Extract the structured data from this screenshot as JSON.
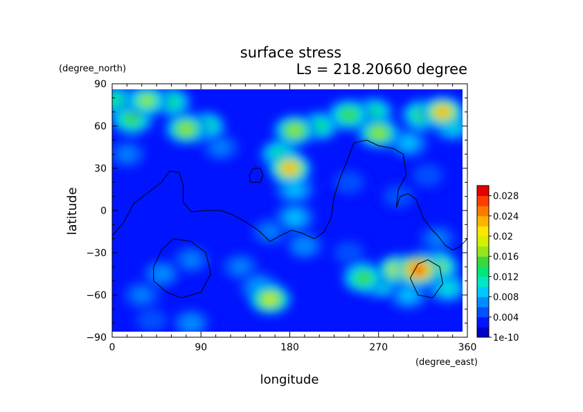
{
  "chart_data": {
    "type": "heatmap",
    "title": "surface stress",
    "subtitle": "Ls = 218.20660 degree",
    "xlabel": "longitude",
    "ylabel": "latitude",
    "x_units": "(degree_east)",
    "y_units": "(degree_north)",
    "xlim": [
      0,
      360
    ],
    "ylim": [
      -90,
      90
    ],
    "x_ticks": [
      "0",
      "90",
      "180",
      "270",
      "360"
    ],
    "y_ticks": [
      "90",
      "60",
      "30",
      "0",
      "−30",
      "−60",
      "−90"
    ],
    "grid": false,
    "colorbar": {
      "placement": "right",
      "min": 0,
      "max": 0.03,
      "tick_labels": [
        "1e-10",
        "0.004",
        "0.008",
        "0.012",
        "0.016",
        "0.02",
        "0.024",
        "0.028"
      ],
      "tick_values": [
        0,
        0.004,
        0.008,
        0.012,
        0.016,
        0.02,
        0.024,
        0.028
      ],
      "colors": [
        "#0000c8",
        "#0014ff",
        "#0050ff",
        "#008cff",
        "#00c8ff",
        "#00e6c8",
        "#00e678",
        "#3cd73c",
        "#96e61e",
        "#d2f000",
        "#ffe600",
        "#ffb400",
        "#ff7800",
        "#ff3c00",
        "#e10000"
      ]
    },
    "base_value": 0.002,
    "hotspots": [
      {
        "lon": 5,
        "lat": 78,
        "value": 0.013
      },
      {
        "lon": 35,
        "lat": 78,
        "value": 0.016
      },
      {
        "lon": 60,
        "lat": 77,
        "value": 0.012
      },
      {
        "lon": 20,
        "lat": 65,
        "value": 0.014
      },
      {
        "lon": 75,
        "lat": 58,
        "value": 0.017
      },
      {
        "lon": 95,
        "lat": 60,
        "value": 0.012
      },
      {
        "lon": 15,
        "lat": 40,
        "value": 0.006
      },
      {
        "lon": 110,
        "lat": 45,
        "value": 0.006
      },
      {
        "lon": 185,
        "lat": 57,
        "value": 0.017
      },
      {
        "lon": 210,
        "lat": 60,
        "value": 0.012
      },
      {
        "lon": 240,
        "lat": 68,
        "value": 0.015
      },
      {
        "lon": 265,
        "lat": 70,
        "value": 0.012
      },
      {
        "lon": 270,
        "lat": 55,
        "value": 0.017
      },
      {
        "lon": 300,
        "lat": 48,
        "value": 0.009
      },
      {
        "lon": 335,
        "lat": 70,
        "value": 0.022
      },
      {
        "lon": 315,
        "lat": 68,
        "value": 0.014
      },
      {
        "lon": 345,
        "lat": 60,
        "value": 0.01
      },
      {
        "lon": 180,
        "lat": 30,
        "value": 0.022
      },
      {
        "lon": 170,
        "lat": 40,
        "value": 0.012
      },
      {
        "lon": 185,
        "lat": 15,
        "value": 0.008
      },
      {
        "lon": 185,
        "lat": -5,
        "value": 0.008
      },
      {
        "lon": 195,
        "lat": -25,
        "value": 0.007
      },
      {
        "lon": 160,
        "lat": -15,
        "value": 0.006
      },
      {
        "lon": 130,
        "lat": -40,
        "value": 0.006
      },
      {
        "lon": 150,
        "lat": -55,
        "value": 0.008
      },
      {
        "lon": 160,
        "lat": -63,
        "value": 0.018
      },
      {
        "lon": 50,
        "lat": -45,
        "value": 0.007
      },
      {
        "lon": 80,
        "lat": -35,
        "value": 0.006
      },
      {
        "lon": 30,
        "lat": -60,
        "value": 0.006
      },
      {
        "lon": 80,
        "lat": -80,
        "value": 0.007
      },
      {
        "lon": 40,
        "lat": -78,
        "value": 0.005
      },
      {
        "lon": 310,
        "lat": -42,
        "value": 0.027
      },
      {
        "lon": 290,
        "lat": -42,
        "value": 0.019
      },
      {
        "lon": 330,
        "lat": -40,
        "value": 0.016
      },
      {
        "lon": 255,
        "lat": -48,
        "value": 0.015
      },
      {
        "lon": 270,
        "lat": -52,
        "value": 0.013
      },
      {
        "lon": 340,
        "lat": -55,
        "value": 0.01
      },
      {
        "lon": 300,
        "lat": -60,
        "value": 0.008
      },
      {
        "lon": 240,
        "lat": -30,
        "value": 0.005
      },
      {
        "lon": 330,
        "lat": -20,
        "value": 0.006
      },
      {
        "lon": 290,
        "lat": 10,
        "value": 0.005
      },
      {
        "lon": 320,
        "lat": 25,
        "value": 0.005
      },
      {
        "lon": 240,
        "lat": 20,
        "value": 0.005
      }
    ],
    "contours": [
      {
        "points": [
          [
            0,
            -18
          ],
          [
            12,
            -8
          ],
          [
            22,
            5
          ],
          [
            35,
            12
          ],
          [
            50,
            20
          ],
          [
            58,
            28
          ],
          [
            68,
            27
          ],
          [
            72,
            18
          ],
          [
            72,
            6
          ],
          [
            80,
            -1
          ],
          [
            95,
            0
          ],
          [
            110,
            0
          ],
          [
            122,
            -3
          ],
          [
            135,
            -8
          ],
          [
            148,
            -14
          ],
          [
            160,
            -22
          ],
          [
            170,
            -18
          ],
          [
            182,
            -14
          ],
          [
            192,
            -16
          ],
          [
            205,
            -20
          ],
          [
            215,
            -15
          ],
          [
            222,
            -5
          ],
          [
            225,
            10
          ],
          [
            232,
            25
          ],
          [
            238,
            35
          ],
          [
            245,
            48
          ],
          [
            258,
            50
          ],
          [
            270,
            46
          ],
          [
            285,
            44
          ],
          [
            295,
            40
          ],
          [
            298,
            25
          ],
          [
            290,
            15
          ],
          [
            288,
            2
          ],
          [
            292,
            10
          ],
          [
            300,
            12
          ],
          [
            308,
            8
          ],
          [
            315,
            -5
          ],
          [
            322,
            -12
          ],
          [
            330,
            -18
          ],
          [
            338,
            -25
          ],
          [
            345,
            -28
          ],
          [
            352,
            -26
          ],
          [
            360,
            -20
          ]
        ]
      },
      {
        "points": [
          [
            140,
            20
          ],
          [
            150,
            20
          ],
          [
            153,
            25
          ],
          [
            150,
            30
          ],
          [
            143,
            30
          ],
          [
            139,
            25
          ],
          [
            140,
            20
          ]
        ]
      },
      {
        "points": [
          [
            42,
            -40
          ],
          [
            50,
            -28
          ],
          [
            62,
            -20
          ],
          [
            80,
            -22
          ],
          [
            95,
            -30
          ],
          [
            100,
            -45
          ],
          [
            90,
            -58
          ],
          [
            70,
            -62
          ],
          [
            55,
            -58
          ],
          [
            42,
            -50
          ],
          [
            42,
            -40
          ]
        ]
      },
      {
        "points": [
          [
            302,
            -48
          ],
          [
            310,
            -38
          ],
          [
            320,
            -35
          ],
          [
            332,
            -40
          ],
          [
            335,
            -52
          ],
          [
            325,
            -62
          ],
          [
            310,
            -60
          ],
          [
            302,
            -48
          ]
        ]
      }
    ]
  }
}
